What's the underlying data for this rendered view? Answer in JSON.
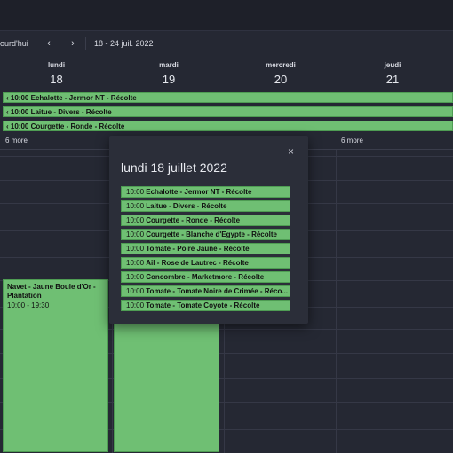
{
  "toolbar": {
    "today_label": "jourd'hui",
    "prev_icon": "‹",
    "next_icon": "›",
    "range_label": "18 - 24 juil. 2022"
  },
  "days": [
    {
      "name": "lundi",
      "num": "18"
    },
    {
      "name": "mardi",
      "num": "19"
    },
    {
      "name": "mercredi",
      "num": "20"
    },
    {
      "name": "jeudi",
      "num": "21"
    }
  ],
  "allday_events": [
    "‹ 10:00 Echalotte - Jermor NT - Récolte",
    "‹ 10:00 Laitue - Divers - Récolte",
    "‹ 10:00 Courgette - Ronde - Récolte"
  ],
  "more": {
    "left": "6 more",
    "right": "6 more"
  },
  "timed_events": [
    {
      "title": "Navet - Jaune Boule d'Or - Plantation",
      "hours": "10:00 - 19:30"
    }
  ],
  "popup": {
    "close_icon": "×",
    "title": "lundi 18 juillet 2022",
    "items": [
      {
        "time": "10:00",
        "label": "Echalotte - Jermor NT - Récolte"
      },
      {
        "time": "10:00",
        "label": "Laitue - Divers - Récolte"
      },
      {
        "time": "10:00",
        "label": "Courgette - Ronde - Récolte"
      },
      {
        "time": "10:00",
        "label": "Courgette - Blanche d'Egypte - Récolte"
      },
      {
        "time": "10:00",
        "label": "Tomate - Poire Jaune - Récolte"
      },
      {
        "time": "10:00",
        "label": "Ail - Rose de Lautrec - Récolte"
      },
      {
        "time": "10:00",
        "label": "Concombre - Marketmore - Récolte"
      },
      {
        "time": "10:00",
        "label": "Tomate - Tomate Noire de Crimée - Réco..."
      },
      {
        "time": "10:00",
        "label": "Tomate - Tomate Coyote - Récolte"
      }
    ]
  },
  "colors": {
    "event": "#6fbf73",
    "background": "#252833"
  }
}
